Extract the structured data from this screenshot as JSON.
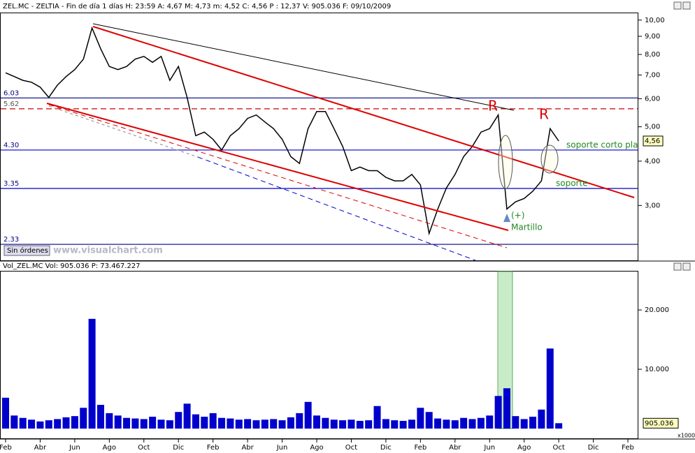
{
  "ui": {
    "orders": "Sin órdenes",
    "site": "www.visualchart.com"
  },
  "chart_data": [
    {
      "type": "line",
      "title": "ZEL.MC - ZELTIA - Fin de día 1 días H: 23:59  A: 4,67  M: 4,73  m: 4,52  C: 4,56  P : 12,37  V: 905.036  F: 09/10/2009",
      "log": true,
      "ylim": [
        2.1,
        10.5
      ],
      "yticks": [
        {
          "value": 3,
          "label": "3,00"
        },
        {
          "value": 4,
          "label": "4,00"
        },
        {
          "value": 5,
          "label": "5,00"
        },
        {
          "value": 6,
          "label": "6,00"
        },
        {
          "value": 7,
          "label": "7,00"
        },
        {
          "value": 8,
          "label": "8,00"
        },
        {
          "value": 9,
          "label": "9,00"
        },
        {
          "value": 10,
          "label": "10,00"
        }
      ],
      "categories": [
        "Feb",
        null,
        null,
        null,
        "Abr",
        null,
        null,
        null,
        "Jun",
        null,
        null,
        null,
        "Ago",
        null,
        null,
        null,
        "Oct",
        null,
        null,
        null,
        "Dic",
        null,
        null,
        null,
        "Feb",
        null,
        null,
        null,
        "Abr",
        null,
        null,
        null,
        "Jun",
        null,
        null,
        null,
        "Ago",
        null,
        null,
        null,
        "Oct",
        null,
        null,
        null,
        "Dic",
        null,
        null,
        null,
        "Feb",
        null,
        null,
        null,
        "Abr",
        null,
        null,
        null,
        "Jun",
        null,
        null,
        null,
        "Ago",
        null,
        null,
        null,
        "Oct",
        null,
        null,
        null,
        "Dic",
        null,
        null,
        null,
        "Feb"
      ],
      "series": [
        {
          "name": "ZEL.MC",
          "color": "#000000",
          "values": [
            7.1,
            6.93,
            6.76,
            6.68,
            6.47,
            6.05,
            6.56,
            6.93,
            7.25,
            7.76,
            9.5,
            8.3,
            7.4,
            7.25,
            7.4,
            7.76,
            7.9,
            7.6,
            7.9,
            6.76,
            7.4,
            6.05,
            4.72,
            4.83,
            4.61,
            4.3,
            4.72,
            4.94,
            5.28,
            5.4,
            5.16,
            4.94,
            4.61,
            4.12,
            3.94,
            4.94,
            5.52,
            5.52,
            4.94,
            4.4,
            3.76,
            3.85,
            3.76,
            3.76,
            3.6,
            3.52,
            3.52,
            3.67,
            3.43,
            2.5,
            2.93,
            3.36,
            3.67,
            4.12,
            4.4,
            4.83,
            4.94,
            5.4,
            2.93,
            3.07,
            3.14,
            3.29,
            3.52,
            4.94,
            4.56,
            null,
            null,
            null,
            null,
            null,
            null,
            null,
            null
          ]
        }
      ],
      "price_tag": {
        "value": 4.56,
        "label": "4,56"
      },
      "levels": [
        {
          "value": 6.03,
          "color": "#000080",
          "dashed": false
        },
        {
          "value": 5.62,
          "color": "#cc0000",
          "dashed": true
        },
        {
          "value": 4.3,
          "label": "4.30",
          "color": "#0000cc",
          "dashed": false
        },
        {
          "value": 3.35,
          "color": "#0000cc",
          "dashed": false
        },
        {
          "value": 2.33,
          "color": "#000080",
          "dashed": false
        }
      ],
      "annotations": [
        "R",
        "R",
        "soporte corto pla",
        "soporte",
        "(+)",
        "Martillo"
      ]
    },
    {
      "type": "bar",
      "title": "Vol_ZEL.MC  Vol: 905.036  P: 73.467.227",
      "ylim": [
        0,
        26600
      ],
      "yticks": [
        {
          "value": 10000,
          "label": "10.000"
        },
        {
          "value": 20000,
          "label": "20.000"
        }
      ],
      "series": [
        {
          "name": "Vol_ZEL.MC",
          "color": "#0000cc",
          "values": [
            5200,
            2200,
            1800,
            1500,
            1200,
            1400,
            1600,
            1900,
            2100,
            3500,
            18500,
            4000,
            2600,
            2200,
            1800,
            1700,
            1600,
            2000,
            1500,
            1400,
            2800,
            4200,
            2400,
            2000,
            2600,
            1800,
            1700,
            1500,
            1600,
            1400,
            1500,
            1600,
            1400,
            1900,
            2600,
            4500,
            2200,
            1800,
            1500,
            1400,
            1500,
            1300,
            1400,
            3800,
            1600,
            1400,
            1300,
            1500,
            3500,
            2800,
            1700,
            1500,
            1400,
            1800,
            1600,
            1800,
            2200,
            5500,
            6800,
            2100,
            1600,
            2000,
            3200,
            13500,
            905.036
          ]
        }
      ],
      "price_tag": {
        "value": 905.036,
        "label": "905.036"
      },
      "unit_label": "x1000"
    }
  ]
}
